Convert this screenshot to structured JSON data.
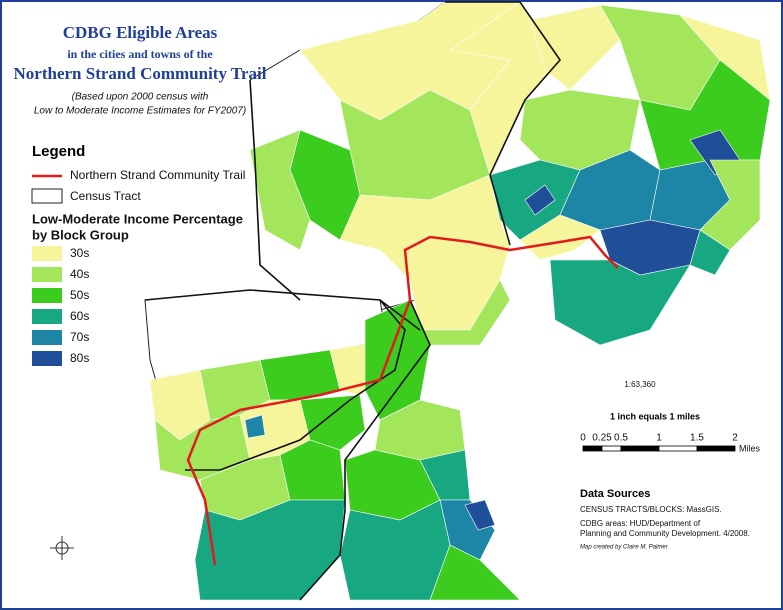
{
  "title": {
    "line1": "CDBG Eligible Areas",
    "line2": "in the cities and towns of the",
    "line3": "Northern Strand Community Trail",
    "note1": "(Based upon 2000 census with",
    "note2": "Low to Moderate Income Estimates for FY2007)"
  },
  "legend": {
    "title": "Legend",
    "trail": "Northern Strand Community Trail",
    "tract": "Census Tract",
    "heading1": "Low-Moderate Income Percentage",
    "heading2": "by Block Group",
    "classes": [
      {
        "label": "30s",
        "color": "#f6f59c"
      },
      {
        "label": "40s",
        "color": "#a3e65c"
      },
      {
        "label": "50s",
        "color": "#3ccc1e"
      },
      {
        "label": "60s",
        "color": "#17a882"
      },
      {
        "label": "70s",
        "color": "#1d86a6"
      },
      {
        "label": "80s",
        "color": "#1f4f99"
      }
    ]
  },
  "scale": {
    "ratio": "1:63,360",
    "equals": "1 inch equals 1 miles",
    "ticks": [
      "0",
      "0.25",
      "0.5",
      "1",
      "1.5",
      "2"
    ],
    "unit": "Miles"
  },
  "sources": {
    "title": "Data Sources",
    "census": "CENSUS TRACTS/BLOCKS:  MassGIS.",
    "cdbg1": "CDBG areas:  HUD/Department of",
    "cdbg2": "Planning and Community Development.  4/2008.",
    "credit": "Map created by Claire M. Palmer"
  }
}
